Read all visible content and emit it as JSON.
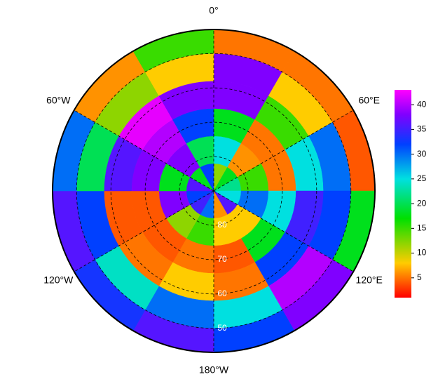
{
  "chart_data": {
    "type": "polar-map",
    "lat_edges": [
      -90,
      -82,
      -74,
      -66,
      -58,
      -50,
      -43
    ],
    "lon_edges": [
      0,
      30,
      60,
      90,
      120,
      150,
      180,
      210,
      240,
      270,
      300,
      330,
      360
    ],
    "values": [
      [
        12,
        18,
        22,
        25,
        36,
        6,
        30,
        35,
        32,
        36,
        18,
        32
      ],
      [
        25,
        6,
        15,
        30,
        8,
        8,
        15,
        12,
        38,
        18,
        38,
        20
      ],
      [
        18,
        5,
        5,
        25,
        18,
        4,
        5,
        4,
        4,
        38,
        40,
        32
      ],
      [
        38,
        15,
        25,
        35,
        32,
        5,
        8,
        5,
        4,
        36,
        42,
        38
      ],
      [
        38,
        8,
        30,
        32,
        40,
        25,
        30,
        24,
        32,
        20,
        12,
        8
      ],
      [
        5,
        5,
        4,
        18,
        38,
        32,
        36,
        33,
        36,
        30,
        6,
        15
      ]
    ],
    "lon_labels": [
      {
        "value": 0,
        "label": "0°"
      },
      {
        "value": 60,
        "label": "60°E"
      },
      {
        "value": 120,
        "label": "120°E"
      },
      {
        "value": 180,
        "label": "180°W"
      },
      {
        "value": 240,
        "label": "120°W"
      },
      {
        "value": 300,
        "label": "60°W"
      }
    ],
    "lat_labels": [
      {
        "value": -80,
        "label": "80"
      },
      {
        "value": -70,
        "label": "70"
      },
      {
        "value": -60,
        "label": "60"
      },
      {
        "value": -50,
        "label": "50"
      }
    ],
    "clim": [
      1,
      43
    ],
    "cticks": [
      5,
      10,
      15,
      20,
      25,
      30,
      35,
      40
    ],
    "colorscale": [
      [
        1,
        "#ff0000"
      ],
      [
        8,
        "#ffcc00"
      ],
      [
        17,
        "#00e000"
      ],
      [
        25,
        "#00e0e0"
      ],
      [
        32,
        "#0040ff"
      ],
      [
        38,
        "#8000ff"
      ],
      [
        43,
        "#ff00ff"
      ]
    ]
  }
}
